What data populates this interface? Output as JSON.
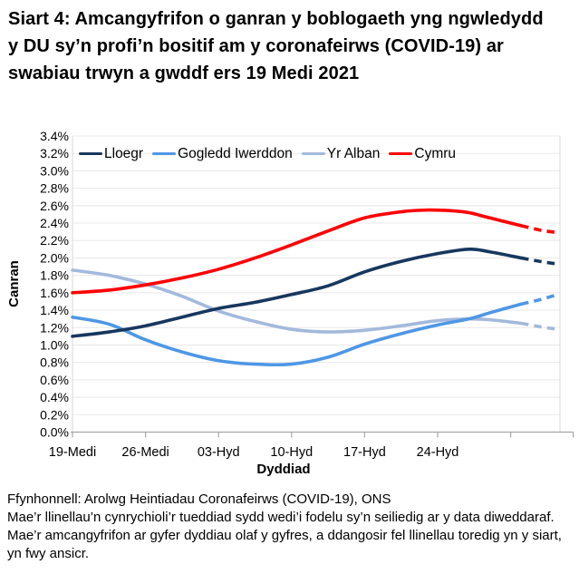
{
  "page": {
    "title": "Siart 4: Amcangyfrifon o ganran y boblogaeth yng ngwledydd y DU sy’n profi’n bositif am y coronafeirws (COVID-19) ar swabiau trwyn a gwddf ers 19 Medi 2021",
    "source_line": "Ffynhonnell: Arolwg Heintiadau Coronafeirws (COVID-19), ONS",
    "note": "Mae’r llinellau’n cynrychioli’r tueddiad sydd wedi’i fodelu sy’n seiliedig ar y data diweddaraf. Mae’r amcangyfrifon ar gyfer dyddiau olaf y gyfres, a ddangosir fel llinellau toredig yn y siart, yn fwy ansicr."
  },
  "chart_data": {
    "type": "line",
    "title": "Siart 4: Amcangyfrifon o ganran y boblogaeth yng ngwledydd y DU sy’n profi’n bositif am y coronafeirws (COVID-19) ar swabiau trwyn a gwddf ers 19 Medi 2021",
    "xlabel": "Dyddiad",
    "ylabel": "Canran",
    "x_unit": "diwrnodau ers 19 Medi 2021",
    "xlim": [
      0,
      48
    ],
    "ylim": [
      0,
      3.4
    ],
    "grid": "horizontal",
    "legend_position": "top-left-inside",
    "note": "llinellau toredig = amcangyfrifon mwy ansicr ar gyfer dyddiau olaf y gyfres",
    "y_ticks": [
      "0.0%",
      "0.2%",
      "0.4%",
      "0.6%",
      "0.8%",
      "1.0%",
      "1.2%",
      "1.4%",
      "1.6%",
      "1.8%",
      "2.0%",
      "2.2%",
      "2.4%",
      "2.6%",
      "2.8%",
      "3.0%",
      "3.2%",
      "3.4%"
    ],
    "x_ticks": [
      {
        "day": 0,
        "label": "19-Medi"
      },
      {
        "day": 7,
        "label": "26-Medi"
      },
      {
        "day": 14,
        "label": "03-Hyd"
      },
      {
        "day": 21,
        "label": "10-Hyd"
      },
      {
        "day": 28,
        "label": "17-Hyd"
      },
      {
        "day": 35,
        "label": "24-Hyd"
      },
      {
        "day": 42,
        "label": ""
      }
    ],
    "series": [
      {
        "name": "Lloegr",
        "color": "#17375E",
        "solid": [
          [
            0,
            1.1
          ],
          [
            3.5,
            1.15
          ],
          [
            7,
            1.22
          ],
          [
            10.5,
            1.32
          ],
          [
            14,
            1.42
          ],
          [
            17.5,
            1.49
          ],
          [
            21,
            1.58
          ],
          [
            24.5,
            1.68
          ],
          [
            28,
            1.84
          ],
          [
            31.5,
            1.96
          ],
          [
            35,
            2.05
          ],
          [
            38,
            2.1
          ],
          [
            40,
            2.07
          ],
          [
            43,
            2.0
          ]
        ],
        "dashed": [
          [
            43,
            2.0
          ],
          [
            44.8,
            1.96
          ],
          [
            46.5,
            1.93
          ]
        ]
      },
      {
        "name": "Gogledd Iwerddon",
        "color": "#4E97E6",
        "solid": [
          [
            0,
            1.32
          ],
          [
            3.5,
            1.24
          ],
          [
            7,
            1.06
          ],
          [
            10.5,
            0.92
          ],
          [
            14,
            0.82
          ],
          [
            17.5,
            0.78
          ],
          [
            21,
            0.78
          ],
          [
            24.5,
            0.86
          ],
          [
            28,
            1.01
          ],
          [
            31.5,
            1.13
          ],
          [
            35,
            1.23
          ],
          [
            38,
            1.3
          ],
          [
            40,
            1.37
          ],
          [
            43,
            1.47
          ]
        ],
        "dashed": [
          [
            43,
            1.47
          ],
          [
            44.8,
            1.52
          ],
          [
            46.5,
            1.58
          ]
        ]
      },
      {
        "name": "Yr Alban",
        "color": "#A3B9DC",
        "solid": [
          [
            0,
            1.86
          ],
          [
            3.5,
            1.8
          ],
          [
            7,
            1.7
          ],
          [
            10.5,
            1.56
          ],
          [
            14,
            1.39
          ],
          [
            17.5,
            1.27
          ],
          [
            21,
            1.18
          ],
          [
            24.5,
            1.15
          ],
          [
            28,
            1.17
          ],
          [
            31.5,
            1.22
          ],
          [
            35,
            1.28
          ],
          [
            38,
            1.3
          ],
          [
            40,
            1.29
          ],
          [
            43,
            1.25
          ]
        ],
        "dashed": [
          [
            43,
            1.25
          ],
          [
            44.8,
            1.21
          ],
          [
            46.5,
            1.18
          ]
        ]
      },
      {
        "name": "Cymru",
        "color": "#FF0000",
        "solid": [
          [
            0,
            1.6
          ],
          [
            3.5,
            1.63
          ],
          [
            7,
            1.69
          ],
          [
            10.5,
            1.77
          ],
          [
            14,
            1.87
          ],
          [
            17.5,
            2.0
          ],
          [
            21,
            2.15
          ],
          [
            24.5,
            2.31
          ],
          [
            28,
            2.46
          ],
          [
            31.5,
            2.53
          ],
          [
            34,
            2.55
          ],
          [
            36.5,
            2.54
          ],
          [
            38,
            2.52
          ],
          [
            40,
            2.46
          ],
          [
            43,
            2.37
          ]
        ],
        "dashed": [
          [
            43,
            2.37
          ],
          [
            44.8,
            2.32
          ],
          [
            46.5,
            2.29
          ]
        ]
      }
    ]
  }
}
